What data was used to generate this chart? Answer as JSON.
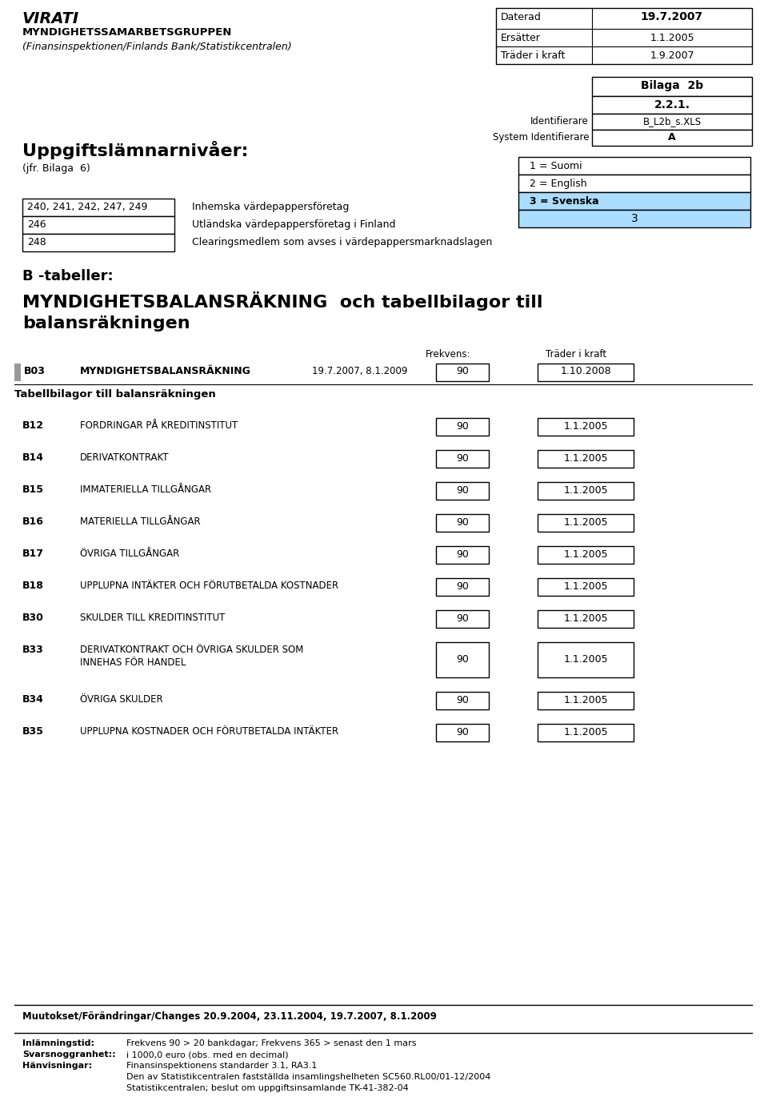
{
  "header_title_italic": "VIRATI",
  "header_line2": "MYNDIGHETSSAMARBETSGRUPPEN",
  "header_line3": "(Finansinspektionen/Finlands Bank/Statistikcentralen)",
  "daterad_label": "Daterad",
  "daterad_value": "19.7.2007",
  "ersatter_label": "Ersätter",
  "ersatter_value": "1.1.2005",
  "trader_label": "Träder i kraft",
  "trader_value": "1.9.2007",
  "bilaga_label": "Bilaga  2b",
  "bilaga_sub": "2.2.1.",
  "identifierare_label": "Identifierare",
  "identifierare_value": "B_L2b_s.XLS",
  "system_label": "System Identifierare",
  "system_value": "A",
  "uppgifts_title": "Uppgiftslämnarnivåer:",
  "jfr_label": "(jfr. Bilaga  6)",
  "lang_box_lines": [
    "1 = Suomi",
    "2 = English",
    "3 = Svenska"
  ],
  "lang_selected": "3",
  "lang_selected_bg": "#aaddff",
  "codes": [
    {
      "code": "240, 241, 242, 247, 249",
      "desc": "Inhemska värdepappersföretag"
    },
    {
      "code": "246",
      "desc": "Utländska värdepappersföretag i Finland"
    },
    {
      "code": "248",
      "desc": "Clearingsmedlem som avses i värdepappersmarknadslagen"
    }
  ],
  "section_b_label": "B -tabeller:",
  "section_main_title_line1": "MYNDIGHETSBALANSRÄKNING  och tabellbilagor till",
  "section_main_title_line2": "balansräkningen",
  "freq_label": "Frekvens:",
  "trader_kraft_label": "Träder i kraft",
  "b03_code": "B03",
  "b03_desc": "MYNDIGHETSBALANSRÄKNING",
  "b03_date": "19.7.2007, 8.1.2009",
  "b03_freq": "90",
  "b03_kraft": "1.10.2008",
  "tabellbilagor_label": "Tabellbilagor till balansräkningen",
  "rows": [
    {
      "code": "B12",
      "desc": "FORDRINGAR PÅ KREDITINSTITUT",
      "freq": "90",
      "kraft": "1.1.2005",
      "double": false
    },
    {
      "code": "B14",
      "desc": "DERIVATKONTRAKT",
      "freq": "90",
      "kraft": "1.1.2005",
      "double": false
    },
    {
      "code": "B15",
      "desc": "IMMATERIELLA TILLGÅNGAR",
      "freq": "90",
      "kraft": "1.1.2005",
      "double": false
    },
    {
      "code": "B16",
      "desc": "MATERIELLA TILLGÅNGAR",
      "freq": "90",
      "kraft": "1.1.2005",
      "double": false
    },
    {
      "code": "B17",
      "desc": "ÖVRIGA TILLGÅNGAR",
      "freq": "90",
      "kraft": "1.1.2005",
      "double": false
    },
    {
      "code": "B18",
      "desc": "UPPLUPNA INTÄKTER OCH FÖRUTBETALDA KOSTNADER",
      "freq": "90",
      "kraft": "1.1.2005",
      "double": false
    },
    {
      "code": "B30",
      "desc": "SKULDER TILL KREDITINSTITUT",
      "freq": "90",
      "kraft": "1.1.2005",
      "double": false
    },
    {
      "code": "B33",
      "desc": "DERIVATKONTRAKT OCH ÖVRIGA SKULDER SOM\nINNEHAS FÖR HANDEL",
      "freq": "90",
      "kraft": "1.1.2005",
      "double": true
    },
    {
      "code": "B34",
      "desc": "ÖVRIGA SKULDER",
      "freq": "90",
      "kraft": "1.1.2005",
      "double": false
    },
    {
      "code": "B35",
      "desc": "UPPLUPNA KOSTNADER OCH FÖRUTBETALDA INTÄKTER",
      "freq": "90",
      "kraft": "1.1.2005",
      "double": false
    }
  ],
  "footer_muutokset": "Muutokset/Förändringar/Changes 20.9.2004, 23.11.2004, 19.7.2007, 8.1.2009",
  "footer_labels": [
    "Inlämningstid:",
    "Svarsnoggranhet::",
    "Hänvisningar:",
    "",
    ""
  ],
  "footer_values": [
    "Frekvens 90 > 20 bankdagar; Frekvens 365 > senast den 1 mars",
    "i 1000,0 euro (obs. med en decimal)",
    "Finansinspektionens standarder 3.1, RA3.1",
    "Den av Statistikcentralen fastställda insamlingshelheten SC560.RL00/01-12/2004",
    "Statistikcentralen; beslut om uppgiftsinsamlande TK-41-382-04"
  ],
  "bg_color": "#ffffff",
  "text_color": "#000000"
}
